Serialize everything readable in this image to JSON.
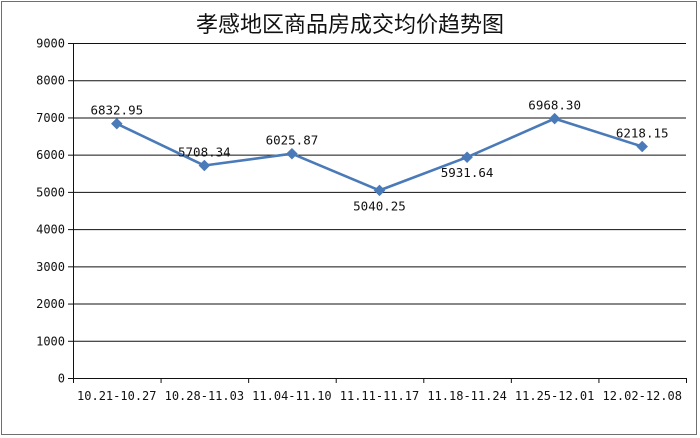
{
  "chart_data": {
    "type": "line",
    "title": "孝感地区商品房成交均价趋势图",
    "xlabel": "",
    "ylabel": "",
    "categories": [
      "10.21-10.27",
      "10.28-11.03",
      "11.04-11.10",
      "11.11-11.17",
      "11.18-11.24",
      "11.25-12.01",
      "12.02-12.08"
    ],
    "series": [
      {
        "values": [
          6832.95,
          5708.34,
          6025.87,
          5040.25,
          5931.64,
          6968.3,
          6218.15
        ],
        "labels": [
          "6832.95",
          "5708.34",
          "6025.87",
          "5040.25",
          "5931.64",
          "6968.30",
          "6218.15"
        ],
        "color": "#4a7ab8"
      }
    ],
    "ylim": [
      0,
      9000
    ],
    "yticks": [
      "0",
      "1000",
      "2000",
      "3000",
      "4000",
      "5000",
      "6000",
      "7000",
      "8000",
      "9000"
    ],
    "grid": true,
    "legend": "none"
  }
}
